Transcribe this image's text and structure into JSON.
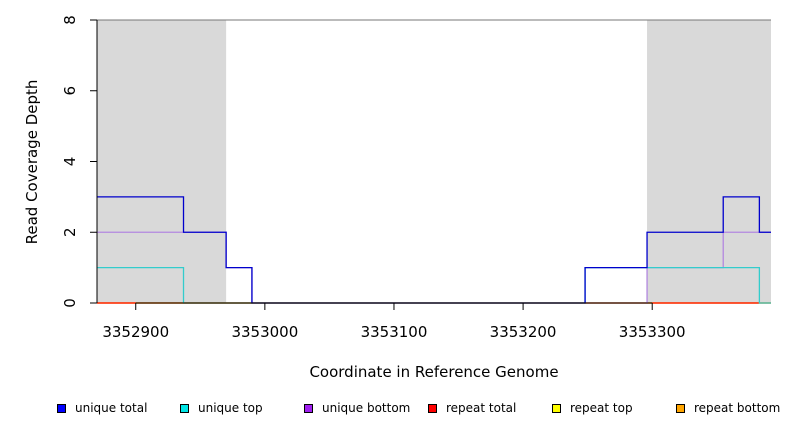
{
  "chart_data": {
    "type": "line",
    "step": true,
    "xlabel": "Coordinate in Reference Genome",
    "ylabel": "Read Coverage Depth",
    "xlim": [
      3352870,
      3353392
    ],
    "ylim": [
      0,
      8
    ],
    "x_ticks": [
      3352900,
      3353000,
      3353100,
      3353200,
      3353300
    ],
    "x_tick_labels": [
      "3352900",
      "3353000",
      "3353100",
      "3353200",
      "3353300"
    ],
    "y_ticks": [
      0,
      2,
      4,
      6,
      8
    ],
    "y_tick_labels": [
      "0",
      "2",
      "4",
      "6",
      "8"
    ],
    "shaded_regions": [
      {
        "start": 3352870,
        "end": 3352970
      },
      {
        "start": 3353296,
        "end": 3353392
      }
    ],
    "series": [
      {
        "name": "unique total",
        "color": "#0000cc",
        "x": [
          3352870,
          3352937,
          3352970,
          3352990,
          3353248,
          3353296,
          3353355,
          3353383,
          3353392
        ],
        "y": [
          3,
          2,
          1,
          0,
          1,
          2,
          3,
          2,
          2
        ]
      },
      {
        "name": "unique top",
        "color": "#33cccc",
        "x": [
          3352870,
          3352937,
          3353248,
          3353383,
          3353392
        ],
        "y": [
          1,
          0,
          1,
          0,
          0
        ]
      },
      {
        "name": "unique bottom",
        "color": "#b388e0",
        "x": [
          3352870,
          3352970,
          3352990,
          3353296,
          3353355,
          3353392
        ],
        "y": [
          2,
          1,
          0,
          1,
          2,
          2
        ]
      },
      {
        "name": "repeat total",
        "color": "#ff0000",
        "x": [
          3352870,
          3353392
        ],
        "y": [
          0,
          0
        ]
      },
      {
        "name": "repeat top",
        "color": "#ffff00",
        "x": [
          3352870,
          3353392
        ],
        "y": [
          0,
          0
        ]
      },
      {
        "name": "repeat bottom",
        "color": "#f0a000",
        "x": [
          3352870,
          3353392
        ],
        "y": [
          0,
          0
        ]
      }
    ],
    "legend": [
      {
        "label": "unique total",
        "color": "#0000ff"
      },
      {
        "label": "unique top",
        "color": "#00e5e5"
      },
      {
        "label": "unique bottom",
        "color": "#a020f0"
      },
      {
        "label": "repeat total",
        "color": "#ff0000"
      },
      {
        "label": "repeat top",
        "color": "#ffff00"
      },
      {
        "label": "repeat bottom",
        "color": "#ffa500"
      }
    ],
    "legend_position": "bottom"
  }
}
